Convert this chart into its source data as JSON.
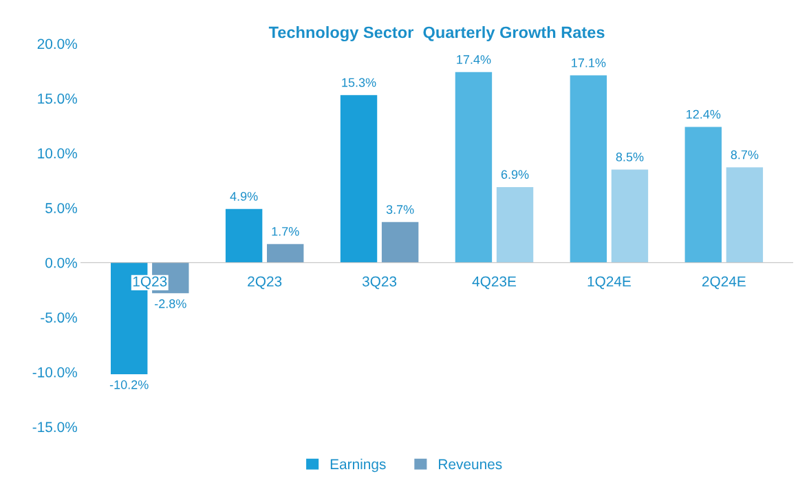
{
  "chart_data": {
    "type": "bar",
    "title": "Technology Sector  Quarterly Growth Rates",
    "categories": [
      "1Q23",
      "2Q23",
      "3Q23",
      "4Q23E",
      "1Q24E",
      "2Q24E"
    ],
    "series": [
      {
        "name": "Earnings",
        "color": "#1a9fd9",
        "colors": [
          "#1a9fd9",
          "#1a9fd9",
          "#1a9fd9",
          "#52b6e2",
          "#52b6e2",
          "#52b6e2"
        ],
        "values": [
          -10.2,
          4.9,
          15.3,
          17.4,
          17.1,
          12.4
        ],
        "value_labels": [
          "-10.2%",
          "4.9%",
          "15.3%",
          "17.4%",
          "17.1%",
          "12.4%"
        ]
      },
      {
        "name": "Reveunes",
        "color": "#6f9fc3",
        "colors": [
          "#6f9fc3",
          "#6f9fc3",
          "#6f9fc3",
          "#9fd2ec",
          "#9fd2ec",
          "#9fd2ec"
        ],
        "values": [
          -2.8,
          1.7,
          3.7,
          6.9,
          8.5,
          8.7
        ],
        "value_labels": [
          "-2.8%",
          "1.7%",
          "3.7%",
          "6.9%",
          "8.5%",
          "8.7%"
        ]
      }
    ],
    "ylim": [
      -15,
      20
    ],
    "yticks": [
      {
        "value": -15,
        "label": "-15.0%"
      },
      {
        "value": -10,
        "label": "-10.0%"
      },
      {
        "value": -5,
        "label": "-5.0%"
      },
      {
        "value": 0,
        "label": "0.0%"
      },
      {
        "value": 5,
        "label": "5.0%"
      },
      {
        "value": 10,
        "label": "10.0%"
      },
      {
        "value": 15,
        "label": "15.0%"
      },
      {
        "value": 20,
        "label": "20.0%"
      }
    ],
    "grid": false,
    "legend": "bottom"
  }
}
